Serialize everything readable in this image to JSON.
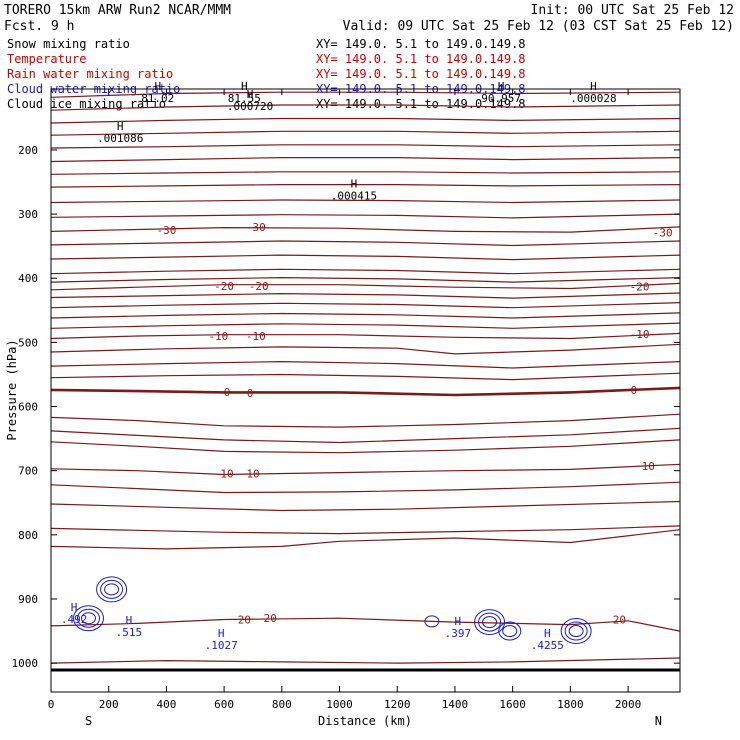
{
  "chart_data": {
    "type": "line",
    "header": {
      "title": "TORERO  15km ARW   Run2    NCAR/MMM",
      "forecast": "Fcst.    9 h",
      "init": "Init: 00 UTC Sat 25 Feb 12",
      "valid": "Valid: 09 UTC Sat 25 Feb 12 (03 CST Sat 25 Feb 12)"
    },
    "legend": [
      {
        "name": "Snow mixing ratio",
        "range": "XY= 149.0.  5.1 to 149.0.149.8",
        "color": "#000000"
      },
      {
        "name": "Temperature",
        "range": "XY= 149.0.  5.1 to 149.0.149.8",
        "color": "#cc0000"
      },
      {
        "name": "Rain water mixing ratio",
        "range": "XY= 149.0.  5.1 to 149.0.149.8",
        "color": "#cc0000"
      },
      {
        "name": "Cloud water mixing ratio",
        "range": "XY= 149.0.  5.1 to 149.0.149.8",
        "color": "#1a1acc"
      },
      {
        "name": "Cloud ice mixing ratio",
        "range": "XY= 149.0.  5.1 to 149.0.149.8",
        "color": "#000000"
      }
    ],
    "xlabel": "Distance (km)",
    "ylabel": "Pressure (hPa)",
    "xlim": [
      0,
      2180
    ],
    "ylim": [
      1045,
      105
    ],
    "xticks": [
      0,
      200,
      400,
      600,
      800,
      1000,
      1200,
      1400,
      1600,
      1800,
      2000
    ],
    "yticks": [
      200,
      300,
      400,
      500,
      600,
      700,
      800,
      900,
      1000
    ],
    "x_end_labels": {
      "left": "S",
      "right": "N"
    },
    "temperature_contours": [
      {
        "level": -50,
        "points": [
          [
            0,
            118
          ],
          [
            400,
            112
          ],
          [
            800,
            110
          ],
          [
            1200,
            110
          ],
          [
            1600,
            112
          ],
          [
            2180,
            110
          ]
        ]
      },
      {
        "level": -48,
        "points": [
          [
            0,
            138
          ],
          [
            400,
            133
          ],
          [
            800,
            130
          ],
          [
            1200,
            130
          ],
          [
            1600,
            133
          ],
          [
            2180,
            130
          ]
        ]
      },
      {
        "level": -46,
        "points": [
          [
            0,
            158
          ],
          [
            400,
            154
          ],
          [
            800,
            151
          ],
          [
            1200,
            151
          ],
          [
            1600,
            154
          ],
          [
            2180,
            151
          ]
        ]
      },
      {
        "level": -44,
        "points": [
          [
            0,
            177
          ],
          [
            400,
            174
          ],
          [
            800,
            171
          ],
          [
            1200,
            171
          ],
          [
            1600,
            174
          ],
          [
            2180,
            171
          ]
        ]
      },
      {
        "level": -42,
        "points": [
          [
            0,
            197
          ],
          [
            400,
            195
          ],
          [
            800,
            192
          ],
          [
            1200,
            192
          ],
          [
            1600,
            195
          ],
          [
            2180,
            192
          ]
        ]
      },
      {
        "level": -40,
        "points": [
          [
            0,
            218
          ],
          [
            400,
            215
          ],
          [
            800,
            212
          ],
          [
            1200,
            212
          ],
          [
            1600,
            215
          ],
          [
            2180,
            212
          ]
        ]
      },
      {
        "level": -38,
        "points": [
          [
            0,
            238
          ],
          [
            400,
            236
          ],
          [
            800,
            234
          ],
          [
            1200,
            234
          ],
          [
            1600,
            236
          ],
          [
            2180,
            234
          ]
        ]
      },
      {
        "level": -36,
        "points": [
          [
            0,
            258
          ],
          [
            400,
            256
          ],
          [
            800,
            254
          ],
          [
            1200,
            254
          ],
          [
            1600,
            256
          ],
          [
            2180,
            254
          ]
        ]
      },
      {
        "level": -34,
        "points": [
          [
            0,
            282
          ],
          [
            400,
            280
          ],
          [
            800,
            278
          ],
          [
            1200,
            279
          ],
          [
            1600,
            282
          ],
          [
            2180,
            278
          ]
        ]
      },
      {
        "level": -32,
        "points": [
          [
            0,
            305
          ],
          [
            400,
            303
          ],
          [
            800,
            301
          ],
          [
            1200,
            302
          ],
          [
            1600,
            306
          ],
          [
            2180,
            300
          ]
        ]
      },
      {
        "level": -30,
        "points": [
          [
            0,
            327
          ],
          [
            300,
            324
          ],
          [
            600,
            321
          ],
          [
            1000,
            322
          ],
          [
            1400,
            327
          ],
          [
            1800,
            328
          ],
          [
            2180,
            320
          ]
        ]
      },
      {
        "level": -28,
        "points": [
          [
            0,
            348
          ],
          [
            400,
            345
          ],
          [
            800,
            342
          ],
          [
            1200,
            344
          ],
          [
            1600,
            349
          ],
          [
            2180,
            342
          ]
        ]
      },
      {
        "level": -26,
        "points": [
          [
            0,
            370
          ],
          [
            400,
            367
          ],
          [
            800,
            364
          ],
          [
            1200,
            366
          ],
          [
            1600,
            371
          ],
          [
            2180,
            364
          ]
        ]
      },
      {
        "level": -24,
        "points": [
          [
            0,
            393
          ],
          [
            400,
            389
          ],
          [
            800,
            386
          ],
          [
            1200,
            388
          ],
          [
            1600,
            393
          ],
          [
            2180,
            386
          ]
        ]
      },
      {
        "level": -22,
        "points": [
          [
            0,
            406
          ],
          [
            400,
            402
          ],
          [
            800,
            399
          ],
          [
            1200,
            401
          ],
          [
            1600,
            406
          ],
          [
            2180,
            399
          ]
        ]
      },
      {
        "level": -20,
        "points": [
          [
            0,
            418
          ],
          [
            300,
            414
          ],
          [
            600,
            410
          ],
          [
            1000,
            410
          ],
          [
            1400,
            414
          ],
          [
            1800,
            416
          ],
          [
            2180,
            408
          ]
        ]
      },
      {
        "level": -18,
        "points": [
          [
            0,
            430
          ],
          [
            400,
            427
          ],
          [
            800,
            424
          ],
          [
            1200,
            426
          ],
          [
            1600,
            431
          ],
          [
            2180,
            423
          ]
        ]
      },
      {
        "level": -16,
        "points": [
          [
            0,
            446
          ],
          [
            400,
            442
          ],
          [
            800,
            439
          ],
          [
            1200,
            441
          ],
          [
            1600,
            446
          ],
          [
            2180,
            438
          ]
        ]
      },
      {
        "level": -14,
        "points": [
          [
            0,
            462
          ],
          [
            400,
            458
          ],
          [
            800,
            455
          ],
          [
            1200,
            457
          ],
          [
            1600,
            462
          ],
          [
            2180,
            454
          ]
        ]
      },
      {
        "level": -12,
        "points": [
          [
            0,
            478
          ],
          [
            400,
            474
          ],
          [
            800,
            471
          ],
          [
            1200,
            473
          ],
          [
            1600,
            478
          ],
          [
            2180,
            470
          ]
        ]
      },
      {
        "level": -10,
        "points": [
          [
            0,
            494
          ],
          [
            300,
            490
          ],
          [
            600,
            488
          ],
          [
            1000,
            488
          ],
          [
            1400,
            492
          ],
          [
            1800,
            494
          ],
          [
            2180,
            486
          ]
        ]
      },
      {
        "level": -8,
        "points": [
          [
            0,
            515
          ],
          [
            400,
            510
          ],
          [
            800,
            507
          ],
          [
            1200,
            509
          ],
          [
            1400,
            518
          ],
          [
            1800,
            512
          ],
          [
            2180,
            503
          ]
        ]
      },
      {
        "level": -6,
        "points": [
          [
            0,
            537
          ],
          [
            400,
            533
          ],
          [
            800,
            530
          ],
          [
            1200,
            533
          ],
          [
            1600,
            540
          ],
          [
            2180,
            530
          ]
        ]
      },
      {
        "level": -4,
        "points": [
          [
            0,
            555
          ],
          [
            400,
            552
          ],
          [
            800,
            550
          ],
          [
            1200,
            553
          ],
          [
            1600,
            558
          ],
          [
            2180,
            548
          ]
        ]
      },
      {
        "level": 0,
        "points": [
          [
            0,
            574
          ],
          [
            300,
            576
          ],
          [
            600,
            578
          ],
          [
            1000,
            578
          ],
          [
            1400,
            582
          ],
          [
            1800,
            578
          ],
          [
            2180,
            571
          ]
        ]
      },
      {
        "level": 4,
        "points": [
          [
            0,
            617
          ],
          [
            300,
            622
          ],
          [
            600,
            630
          ],
          [
            1000,
            632
          ],
          [
            1400,
            628
          ],
          [
            1800,
            622
          ],
          [
            2180,
            612
          ]
        ]
      },
      {
        "level": 6,
        "points": [
          [
            0,
            638
          ],
          [
            300,
            645
          ],
          [
            600,
            652
          ],
          [
            1000,
            656
          ],
          [
            1400,
            650
          ],
          [
            1800,
            644
          ],
          [
            2180,
            634
          ]
        ]
      },
      {
        "level": 8,
        "points": [
          [
            0,
            655
          ],
          [
            300,
            662
          ],
          [
            600,
            670
          ],
          [
            1000,
            672
          ],
          [
            1400,
            668
          ],
          [
            1800,
            662
          ],
          [
            2180,
            652
          ]
        ]
      },
      {
        "level": 10,
        "points": [
          [
            0,
            697
          ],
          [
            300,
            700
          ],
          [
            600,
            706
          ],
          [
            1000,
            703
          ],
          [
            1400,
            700
          ],
          [
            1800,
            698
          ],
          [
            2180,
            690
          ]
        ]
      },
      {
        "level": 12,
        "points": [
          [
            0,
            722
          ],
          [
            300,
            728
          ],
          [
            600,
            734
          ],
          [
            1000,
            733
          ],
          [
            1400,
            730
          ],
          [
            1800,
            725
          ],
          [
            2180,
            718
          ]
        ]
      },
      {
        "level": 14,
        "points": [
          [
            0,
            752
          ],
          [
            400,
            757
          ],
          [
            800,
            762
          ],
          [
            1200,
            760
          ],
          [
            1600,
            755
          ],
          [
            2180,
            748
          ]
        ]
      },
      {
        "level": 16,
        "points": [
          [
            0,
            790
          ],
          [
            300,
            793
          ],
          [
            600,
            796
          ],
          [
            1000,
            798
          ],
          [
            1400,
            795
          ],
          [
            1800,
            792
          ],
          [
            2180,
            786
          ]
        ]
      },
      {
        "level": 18,
        "points": [
          [
            0,
            818
          ],
          [
            400,
            822
          ],
          [
            800,
            818
          ],
          [
            1000,
            810
          ],
          [
            1400,
            805
          ],
          [
            1800,
            812
          ],
          [
            2180,
            792
          ]
        ]
      },
      {
        "level": 20,
        "points": [
          [
            0,
            942
          ],
          [
            300,
            938
          ],
          [
            600,
            932
          ],
          [
            1000,
            930
          ],
          [
            1400,
            936
          ],
          [
            1800,
            940
          ],
          [
            2000,
            934
          ],
          [
            2180,
            950
          ]
        ]
      },
      {
        "level": 22,
        "points": [
          [
            0,
            1000
          ],
          [
            400,
            996
          ],
          [
            800,
            998
          ],
          [
            1200,
            1000
          ],
          [
            1600,
            998
          ],
          [
            2180,
            992
          ]
        ]
      }
    ],
    "temperature_labels": [
      {
        "text": "-30",
        "x": 400,
        "p": 325
      },
      {
        "text": "-30",
        "x": 710,
        "p": 320
      },
      {
        "text": "-30",
        "x": 2120,
        "p": 329
      },
      {
        "text": "-20",
        "x": 600,
        "p": 412
      },
      {
        "text": "-20",
        "x": 720,
        "p": 412
      },
      {
        "text": "-20",
        "x": 2040,
        "p": 413
      },
      {
        "text": "-10",
        "x": 580,
        "p": 490
      },
      {
        "text": "-10",
        "x": 710,
        "p": 490
      },
      {
        "text": "-10",
        "x": 2040,
        "p": 487
      },
      {
        "text": "0",
        "x": 610,
        "p": 577
      },
      {
        "text": "0",
        "x": 690,
        "p": 579
      },
      {
        "text": "0",
        "x": 2020,
        "p": 574
      },
      {
        "text": "10",
        "x": 610,
        "p": 704
      },
      {
        "text": "10",
        "x": 700,
        "p": 704
      },
      {
        "text": "10",
        "x": 2070,
        "p": 693
      },
      {
        "text": "20",
        "x": 670,
        "p": 932
      },
      {
        "text": "20",
        "x": 760,
        "p": 930
      },
      {
        "text": "20",
        "x": 1970,
        "p": 932
      }
    ],
    "extrema": [
      {
        "kind": "H",
        "value": "81.02",
        "x": 370,
        "p": 110
      },
      {
        "kind": "H",
        "value": "81.55",
        "x": 670,
        "p": 110
      },
      {
        "kind": "H",
        "value": ".000720",
        "x": 690,
        "p": 122
      },
      {
        "kind": "H",
        "value": ".001086",
        "x": 240,
        "p": 172
      },
      {
        "kind": "H",
        "value": ".000415",
        "x": 1050,
        "p": 262
      },
      {
        "kind": "H",
        "value": "90.957",
        "x": 1560,
        "p": 110
      },
      {
        "kind": "H",
        "value": ".000028",
        "x": 1880,
        "p": 110
      },
      {
        "kind": "H",
        "value": ".492",
        "x": 80,
        "p": 922
      },
      {
        "kind": "H",
        "value": ".515",
        "x": 270,
        "p": 942
      },
      {
        "kind": "H",
        "value": ".1027",
        "x": 590,
        "p": 962
      },
      {
        "kind": "H",
        "value": ".397",
        "x": 1410,
        "p": 944
      },
      {
        "kind": "H",
        "value": ".4255",
        "x": 1720,
        "p": 962
      }
    ],
    "cloud_water_cells": [
      {
        "x": 130,
        "p": 930,
        "rings": 3
      },
      {
        "x": 210,
        "p": 885,
        "rings": 3
      },
      {
        "x": 1520,
        "p": 936,
        "rings": 3
      },
      {
        "x": 1590,
        "p": 950,
        "rings": 2
      },
      {
        "x": 1820,
        "p": 950,
        "rings": 3
      },
      {
        "x": 1320,
        "p": 935,
        "rings": 1
      }
    ]
  }
}
